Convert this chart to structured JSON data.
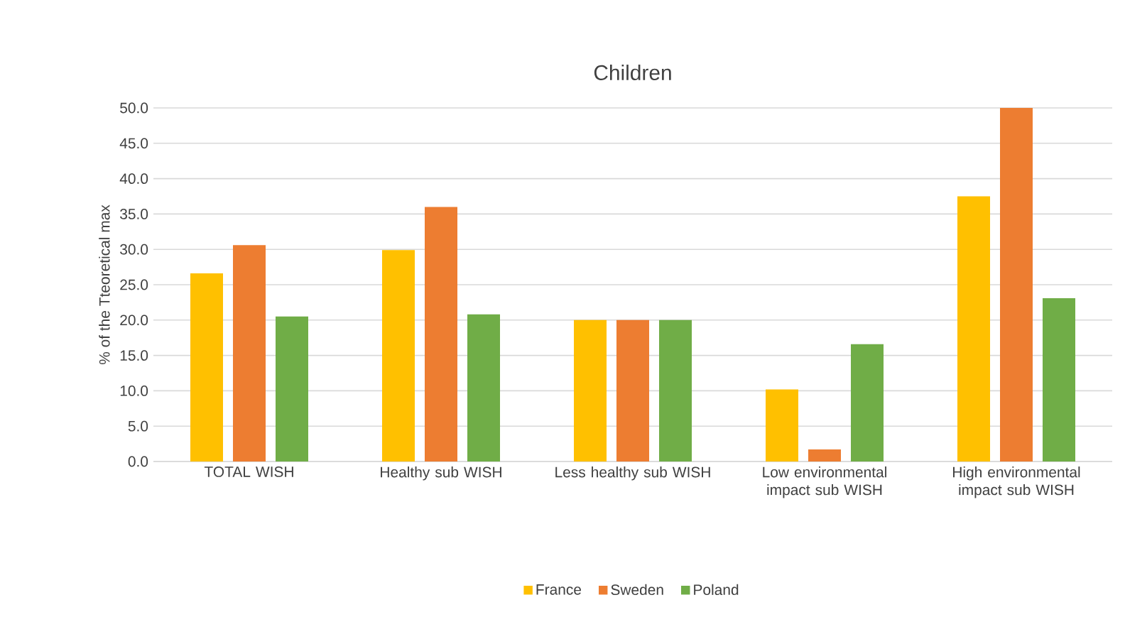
{
  "chart_data": {
    "type": "bar",
    "title": "Children",
    "ylabel": "% of the Tteoretical max",
    "categories": [
      "TOTAL WISH",
      "Healthy sub WISH",
      "Less healthy sub WISH",
      "Low environmental impact sub WISH",
      "High environmental impact sub WISH"
    ],
    "series": [
      {
        "name": "France",
        "color": "#ffc000",
        "values": [
          26.6,
          29.9,
          20.0,
          10.2,
          37.5
        ]
      },
      {
        "name": "Sweden",
        "color": "#ed7d31",
        "values": [
          30.6,
          36.0,
          20.0,
          1.7,
          50.0
        ]
      },
      {
        "name": "Poland",
        "color": "#70ad47",
        "values": [
          20.5,
          20.8,
          20.0,
          16.6,
          23.1
        ]
      }
    ],
    "ylim": [
      0,
      50
    ],
    "yticks": [
      {
        "value": 0,
        "label": "0.0"
      },
      {
        "value": 5,
        "label": "5.0"
      },
      {
        "value": 10,
        "label": "10.0"
      },
      {
        "value": 15,
        "label": "15.0"
      },
      {
        "value": 20,
        "label": "20.0"
      },
      {
        "value": 25,
        "label": "25.0"
      },
      {
        "value": 30,
        "label": "30.0"
      },
      {
        "value": 35,
        "label": "35.0"
      },
      {
        "value": 40,
        "label": "40.0"
      },
      {
        "value": 45,
        "label": "45.0"
      },
      {
        "value": 50,
        "label": "50.0"
      }
    ],
    "grid": "y",
    "legend": "bottom"
  }
}
